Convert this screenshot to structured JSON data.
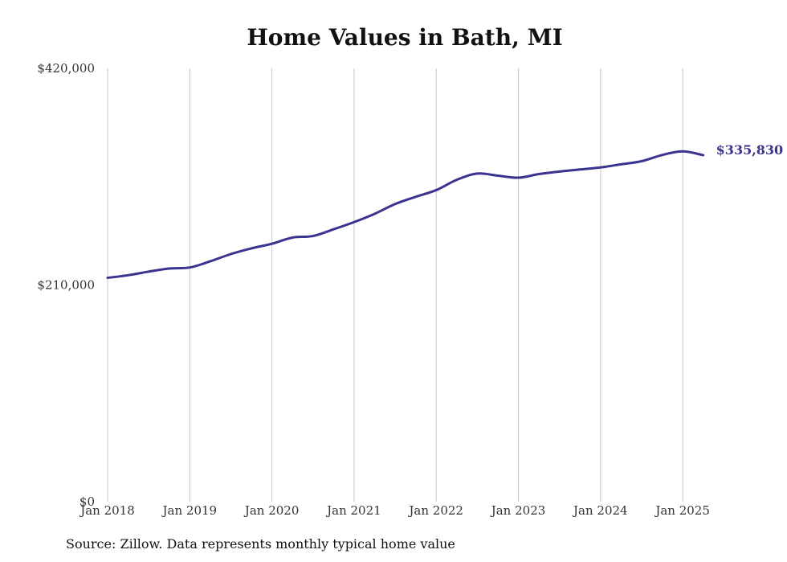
{
  "chart_data": {
    "type": "line",
    "title": "Home Values in Bath, MI",
    "xlabel": "",
    "ylabel": "",
    "ylim": [
      0,
      420000
    ],
    "y_ticks": [
      "$420,000",
      "$210,000",
      "$0"
    ],
    "y_tick_values": [
      420000,
      210000,
      0
    ],
    "x_ticks": [
      "Jan 2018",
      "Jan 2019",
      "Jan 2020",
      "Jan 2021",
      "Jan 2022",
      "Jan 2023",
      "Jan 2024",
      "Jan 2025"
    ],
    "x_tick_values": [
      2018,
      2019,
      2020,
      2021,
      2022,
      2023,
      2024,
      2025
    ],
    "grid": "vertical",
    "series": [
      {
        "color": "#3b3390",
        "points": [
          [
            2018.0,
            217000
          ],
          [
            2018.25,
            219500
          ],
          [
            2018.5,
            223000
          ],
          [
            2018.75,
            226000
          ],
          [
            2019.0,
            227000
          ],
          [
            2019.25,
            233000
          ],
          [
            2019.5,
            240000
          ],
          [
            2019.75,
            245500
          ],
          [
            2020.0,
            250000
          ],
          [
            2020.25,
            256000
          ],
          [
            2020.5,
            257500
          ],
          [
            2020.75,
            264000
          ],
          [
            2021.0,
            271000
          ],
          [
            2021.25,
            279000
          ],
          [
            2021.5,
            288500
          ],
          [
            2021.75,
            295500
          ],
          [
            2022.0,
            302000
          ],
          [
            2022.25,
            312000
          ],
          [
            2022.5,
            318000
          ],
          [
            2022.75,
            316000
          ],
          [
            2023.0,
            314000
          ],
          [
            2023.25,
            317500
          ],
          [
            2023.5,
            320000
          ],
          [
            2023.75,
            322000
          ],
          [
            2024.0,
            324000
          ],
          [
            2024.25,
            327000
          ],
          [
            2024.5,
            330000
          ],
          [
            2024.75,
            336000
          ],
          [
            2025.0,
            339500
          ],
          [
            2025.25,
            335830
          ]
        ],
        "end_label": "$335,830"
      }
    ]
  },
  "footer": {
    "source": "Source: Zillow. Data represents monthly typical home value"
  }
}
